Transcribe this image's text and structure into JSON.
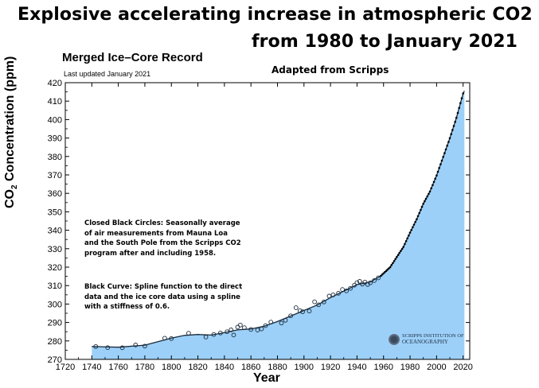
{
  "headline": {
    "line1": "Explosive accelerating increase in atmospheric CO2",
    "line2": "from 1980 to January 2021"
  },
  "chart": {
    "title": "Merged Ice–Core Record",
    "updated": "Last updated January 2021",
    "adapted": "Adapted from Scripps",
    "note1": "Closed Black Circles: Seasonally average of air measurements from Mauna Loa and the South Pole from the Scripps CO2 program after and including 1958.",
    "note2": "Black Curve: Spline function to the direct data and the ice core data using a spline with a stiffness of 0.6.",
    "logo_line1": "SCRIPPS INSTITUTION OF",
    "logo_line2": "OCEANOGRAPHY",
    "ylabel_pre": "CO",
    "ylabel_sub": "2",
    "ylabel_post": " Concentration (ppm)",
    "xlabel": "Year"
  },
  "colors": {
    "fill": "#9cd0f8",
    "curve": "#1a2a3a",
    "axis": "#000000"
  },
  "chart_data": {
    "type": "area",
    "title": "Merged Ice–Core Record",
    "xlabel": "Year",
    "ylabel": "CO2 Concentration (ppm)",
    "xlim": [
      1720,
      2025
    ],
    "ylim": [
      270,
      420
    ],
    "xticks": [
      1720,
      1740,
      1760,
      1780,
      1800,
      1820,
      1840,
      1860,
      1880,
      1900,
      1920,
      1940,
      1960,
      1980,
      2000,
      2020
    ],
    "yticks": [
      270,
      280,
      290,
      300,
      310,
      320,
      330,
      340,
      350,
      360,
      370,
      380,
      390,
      400,
      410,
      420
    ],
    "grid": false,
    "spline": [
      {
        "x": 1740,
        "y": 277
      },
      {
        "x": 1760,
        "y": 276.6
      },
      {
        "x": 1780,
        "y": 277.7
      },
      {
        "x": 1800,
        "y": 281.5
      },
      {
        "x": 1810,
        "y": 283
      },
      {
        "x": 1820,
        "y": 283.5
      },
      {
        "x": 1830,
        "y": 283.2
      },
      {
        "x": 1840,
        "y": 284.5
      },
      {
        "x": 1850,
        "y": 286
      },
      {
        "x": 1860,
        "y": 286.5
      },
      {
        "x": 1870,
        "y": 288
      },
      {
        "x": 1880,
        "y": 290.5
      },
      {
        "x": 1890,
        "y": 293.5
      },
      {
        "x": 1900,
        "y": 296.5
      },
      {
        "x": 1910,
        "y": 299.5
      },
      {
        "x": 1920,
        "y": 303.5
      },
      {
        "x": 1930,
        "y": 307
      },
      {
        "x": 1940,
        "y": 310.5
      },
      {
        "x": 1950,
        "y": 312
      },
      {
        "x": 1958,
        "y": 315.3
      },
      {
        "x": 1965,
        "y": 320
      },
      {
        "x": 1970,
        "y": 325.5
      },
      {
        "x": 1975,
        "y": 331
      },
      {
        "x": 1980,
        "y": 338.7
      },
      {
        "x": 1985,
        "y": 346
      },
      {
        "x": 1990,
        "y": 354.4
      },
      {
        "x": 1995,
        "y": 361
      },
      {
        "x": 2000,
        "y": 369.7
      },
      {
        "x": 2005,
        "y": 379.8
      },
      {
        "x": 2010,
        "y": 389.9
      },
      {
        "x": 2015,
        "y": 401
      },
      {
        "x": 2020,
        "y": 414.2
      },
      {
        "x": 2021,
        "y": 415.5
      }
    ],
    "ice_core": [
      {
        "x": 1743,
        "y": 277
      },
      {
        "x": 1752,
        "y": 276.4
      },
      {
        "x": 1763,
        "y": 276.3
      },
      {
        "x": 1773,
        "y": 277.8
      },
      {
        "x": 1780,
        "y": 277.2
      },
      {
        "x": 1795,
        "y": 281.5
      },
      {
        "x": 1800,
        "y": 281.3
      },
      {
        "x": 1813,
        "y": 284.2
      },
      {
        "x": 1826,
        "y": 282.1
      },
      {
        "x": 1832,
        "y": 283.5
      },
      {
        "x": 1837,
        "y": 284.3
      },
      {
        "x": 1842,
        "y": 285
      },
      {
        "x": 1845,
        "y": 286
      },
      {
        "x": 1847,
        "y": 283.2
      },
      {
        "x": 1850,
        "y": 287.5
      },
      {
        "x": 1852,
        "y": 288.6
      },
      {
        "x": 1855,
        "y": 287.2
      },
      {
        "x": 1860,
        "y": 286.2
      },
      {
        "x": 1865,
        "y": 285.9
      },
      {
        "x": 1868,
        "y": 286.5
      },
      {
        "x": 1871,
        "y": 288.3
      },
      {
        "x": 1875,
        "y": 290.2
      },
      {
        "x": 1883,
        "y": 289.7
      },
      {
        "x": 1886,
        "y": 291.2
      },
      {
        "x": 1890,
        "y": 293.6
      },
      {
        "x": 1894,
        "y": 298
      },
      {
        "x": 1897,
        "y": 296.4
      },
      {
        "x": 1899,
        "y": 295.8
      },
      {
        "x": 1904,
        "y": 296.2
      },
      {
        "x": 1908,
        "y": 301.2
      },
      {
        "x": 1911,
        "y": 299.6
      },
      {
        "x": 1915,
        "y": 301.1
      },
      {
        "x": 1919,
        "y": 304.3
      },
      {
        "x": 1922,
        "y": 305
      },
      {
        "x": 1926,
        "y": 305.8
      },
      {
        "x": 1929,
        "y": 307.9
      },
      {
        "x": 1932,
        "y": 307.1
      },
      {
        "x": 1935,
        "y": 308.5
      },
      {
        "x": 1938,
        "y": 310.2
      },
      {
        "x": 1940,
        "y": 311.6
      },
      {
        "x": 1942,
        "y": 312.3
      },
      {
        "x": 1944,
        "y": 310.8
      },
      {
        "x": 1946,
        "y": 311.9
      },
      {
        "x": 1948,
        "y": 310.6
      },
      {
        "x": 1950,
        "y": 311.5
      },
      {
        "x": 1953,
        "y": 312.7
      },
      {
        "x": 1956,
        "y": 314.2
      }
    ],
    "direct_measurements": {
      "x_start": 1958,
      "x_end": 2020,
      "y_start": 315.3,
      "y_end": 414.2
    }
  }
}
